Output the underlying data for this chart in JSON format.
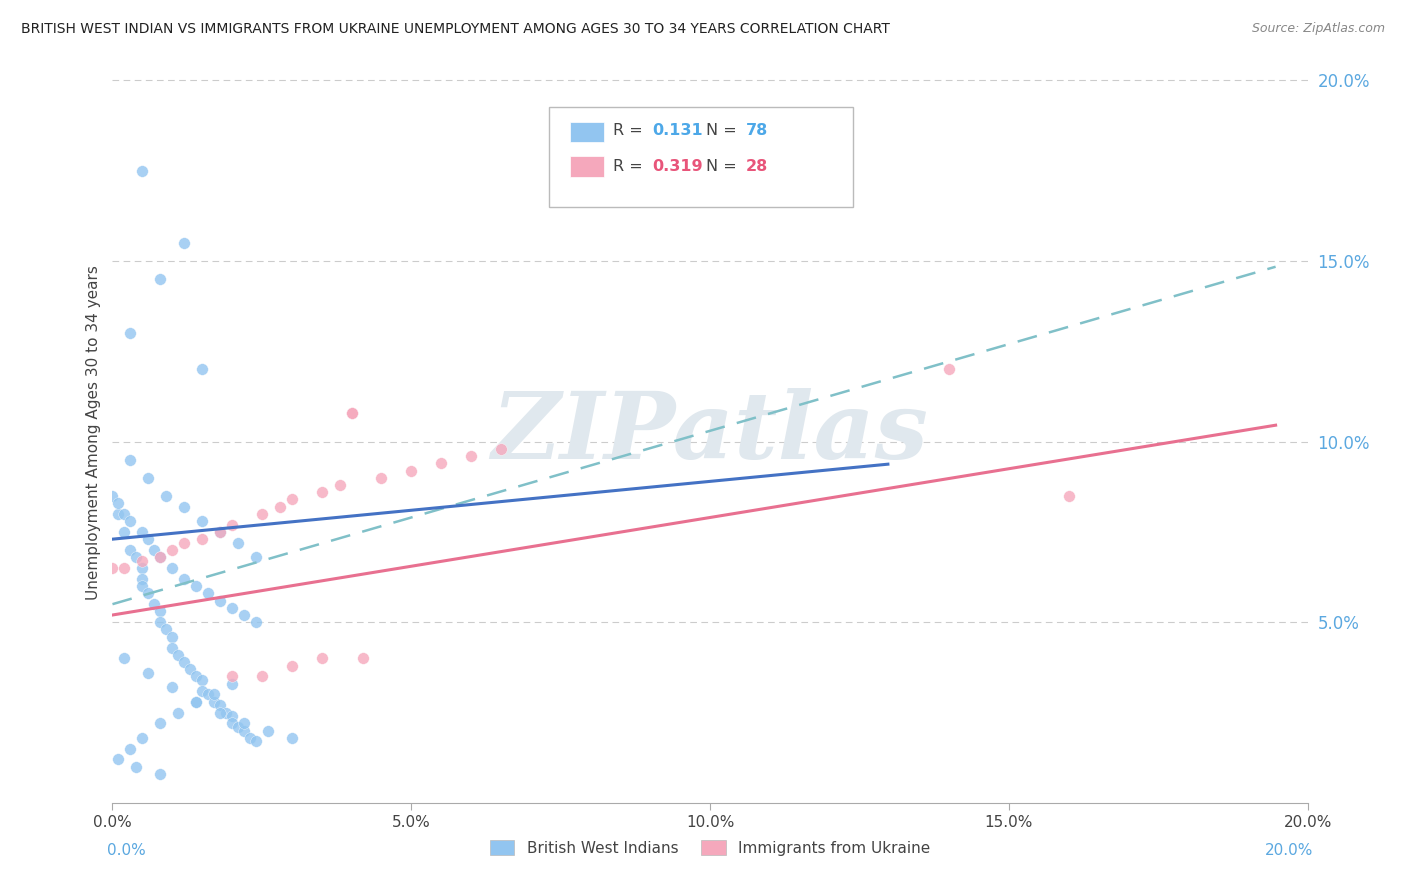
{
  "title": "BRITISH WEST INDIAN VS IMMIGRANTS FROM UKRAINE UNEMPLOYMENT AMONG AGES 30 TO 34 YEARS CORRELATION CHART",
  "source": "Source: ZipAtlas.com",
  "ylabel": "Unemployment Among Ages 30 to 34 years",
  "xlim": [
    0.0,
    0.2
  ],
  "ylim": [
    0.0,
    0.205
  ],
  "xtick_vals": [
    0.0,
    0.05,
    0.1,
    0.15,
    0.2
  ],
  "xtick_labels": [
    "0.0%",
    "5.0%",
    "10.0%",
    "15.0%",
    "20.0%"
  ],
  "ytick_vals": [
    0.05,
    0.1,
    0.15,
    0.2
  ],
  "ytick_labels": [
    "5.0%",
    "10.0%",
    "15.0%",
    "20.0%"
  ],
  "watermark_text": "ZIPatlas",
  "legend_r1": "0.131",
  "legend_n1": "78",
  "legend_r2": "0.319",
  "legend_n2": "28",
  "color_blue": "#92C5F0",
  "color_pink": "#F5A8BC",
  "color_blue_text": "#4DA8E8",
  "color_pink_text": "#E8557A",
  "trendline1_color": "#4472C4",
  "trendline2_color": "#E87090",
  "trendline_dash_color": "#80C0C8",
  "trendline_dash_color2": "#80B8D0",
  "background_color": "#FFFFFF",
  "grid_color": "#CCCCCC",
  "text_color": "#444444",
  "right_axis_color": "#5BA8E0",
  "bwi_intercept": 0.073,
  "bwi_slope": 0.16,
  "bwi_line_end_x": 0.13,
  "ukr_intercept": 0.052,
  "ukr_slope": 0.27,
  "ukr_line_end_x": 0.195,
  "dash_intercept": 0.055,
  "dash_slope": 0.48,
  "dash_line_end_x": 0.195
}
